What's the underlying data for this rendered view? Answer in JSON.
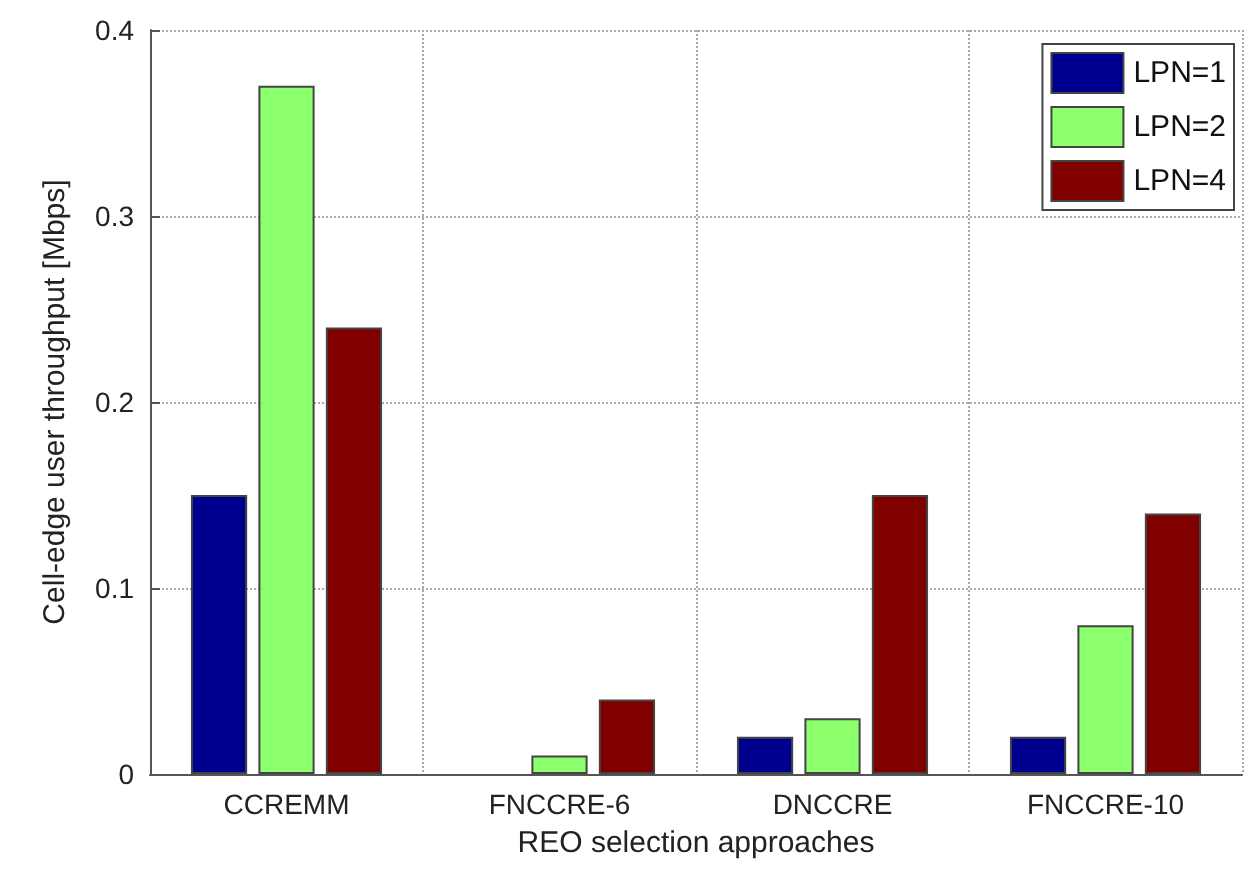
{
  "chart_data": {
    "type": "bar",
    "xlabel": "REO selection approaches",
    "ylabel": "Cell-edge user throughput [Mbps]",
    "categories": [
      "CCREMM",
      "FNCCRE-6",
      "DNCCRE",
      "FNCCRE-10"
    ],
    "series": [
      {
        "name": "LPN=1",
        "color": "#00008f",
        "values": [
          0.15,
          0,
          0.02,
          0.02
        ]
      },
      {
        "name": "LPN=2",
        "color": "#8cff6c",
        "values": [
          0.37,
          0.01,
          0.03,
          0.08
        ]
      },
      {
        "name": "LPN=4",
        "color": "#800000",
        "values": [
          0.24,
          0.04,
          0.15,
          0.14
        ]
      }
    ],
    "ylim": [
      0,
      0.4
    ],
    "yticks": [
      0,
      0.1,
      0.2,
      0.3,
      0.4
    ],
    "grid": true,
    "legend": "top right"
  }
}
